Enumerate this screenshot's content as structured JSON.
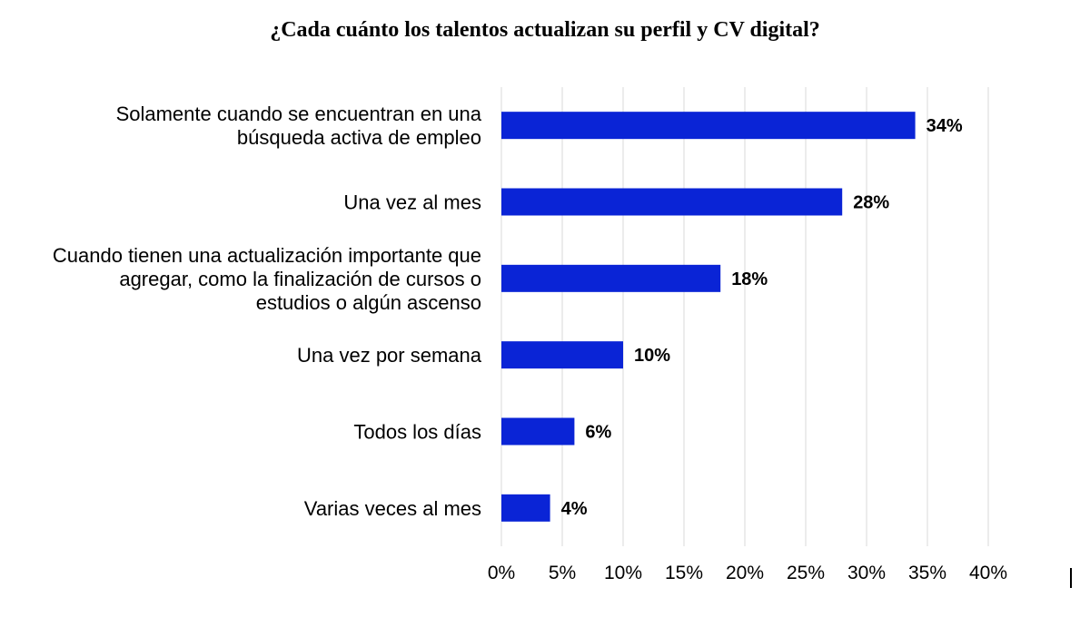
{
  "chart_data": {
    "type": "bar",
    "orientation": "horizontal",
    "title": "¿Cada cuánto los talentos actualizan su perfil y CV digital?",
    "xlabel": "",
    "ylabel": "",
    "categories": [
      [
        "Solamente cuando se encuentran en una",
        "búsqueda activa de empleo"
      ],
      [
        "Una vez al mes"
      ],
      [
        "Cuando tienen una actualización importante que",
        "agregar, como la finalización de cursos o",
        "estudios o algún ascenso"
      ],
      [
        "Una vez por semana"
      ],
      [
        "Todos los días"
      ],
      [
        "Varias veces al mes"
      ]
    ],
    "values": [
      34,
      28,
      18,
      10,
      6,
      4
    ],
    "value_labels": [
      "34%",
      "28%",
      "18%",
      "10%",
      "6%",
      "4%"
    ],
    "xlim": [
      0,
      40
    ],
    "x_ticks": [
      0,
      5,
      10,
      15,
      20,
      25,
      30,
      35,
      40
    ],
    "x_tick_labels": [
      "0%",
      "5%",
      "10%",
      "15%",
      "20%",
      "25%",
      "30%",
      "35%",
      "40%"
    ],
    "grid": "vertical",
    "legend": "none",
    "colors": {
      "bar": "#0a24d6",
      "grid": "#d9d9d9",
      "text": "#000000"
    }
  }
}
